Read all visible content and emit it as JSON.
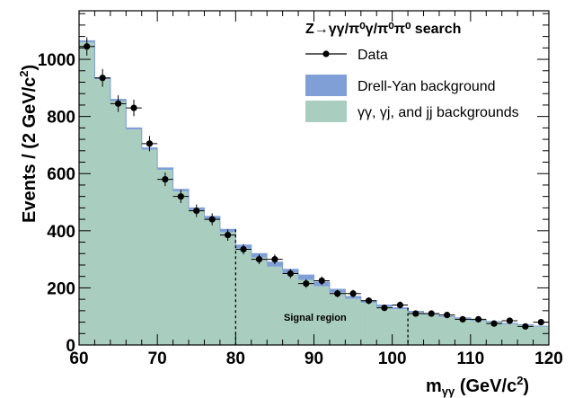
{
  "chart_data": {
    "type": "histogram",
    "title": "",
    "xlabel": "m",
    "xlabel_sub": "γγ",
    "xlabel_unit": "(GeV/c",
    "xlabel_unit_sup": "2",
    "xlabel_unit_close": ")",
    "ylabel": "Events / (2 GeV/c",
    "ylabel_sup": "2",
    "ylabel_close": ")",
    "xlim": [
      60,
      120
    ],
    "ylim": [
      0,
      1170
    ],
    "xticks": [
      60,
      70,
      80,
      90,
      100,
      110,
      120
    ],
    "yticks": [
      0,
      200,
      400,
      600,
      800,
      1000
    ],
    "bin_edges": [
      60,
      62,
      64,
      66,
      68,
      70,
      72,
      74,
      76,
      78,
      80,
      82,
      84,
      86,
      88,
      90,
      92,
      94,
      96,
      98,
      100,
      102,
      104,
      106,
      108,
      110,
      112,
      114,
      116,
      118,
      120
    ],
    "data": [
      1045,
      935,
      845,
      830,
      705,
      580,
      520,
      470,
      440,
      385,
      335,
      300,
      300,
      250,
      215,
      225,
      180,
      180,
      155,
      130,
      140,
      110,
      110,
      105,
      90,
      90,
      75,
      85,
      65,
      80
    ],
    "data_err": [
      32,
      31,
      29,
      29,
      27,
      24,
      23,
      22,
      21,
      20,
      18,
      17,
      17,
      16,
      15,
      15,
      13,
      13,
      12,
      11,
      12,
      10,
      10,
      10,
      9,
      9,
      9,
      9,
      8,
      9
    ],
    "total_background": [
      1065,
      935,
      860,
      760,
      690,
      620,
      545,
      480,
      450,
      405,
      350,
      320,
      290,
      265,
      245,
      220,
      195,
      170,
      155,
      140,
      130,
      118,
      110,
      100,
      95,
      88,
      82,
      76,
      71,
      66
    ],
    "drell_yan": [
      5,
      5,
      6,
      6,
      6,
      7,
      7,
      8,
      9,
      10,
      12,
      14,
      16,
      17,
      17,
      15,
      12,
      9,
      7,
      6,
      5,
      4,
      4,
      3,
      3,
      3,
      2,
      2,
      2,
      2
    ],
    "signal_region": {
      "x_low": 80,
      "x_high": 102,
      "label": "Signal region"
    },
    "legend": {
      "title": "Z→γγ/π⁰γ/π⁰π⁰ search",
      "entries": [
        "Data",
        "Drell-Yan background",
        "γγ, γj, and jj backgrounds"
      ],
      "placement": "top-right"
    },
    "colors": {
      "qcd_fill": "#a9cdbf",
      "drell_yan_fill": "#7f9fd6",
      "data_marker": "#000000"
    }
  }
}
